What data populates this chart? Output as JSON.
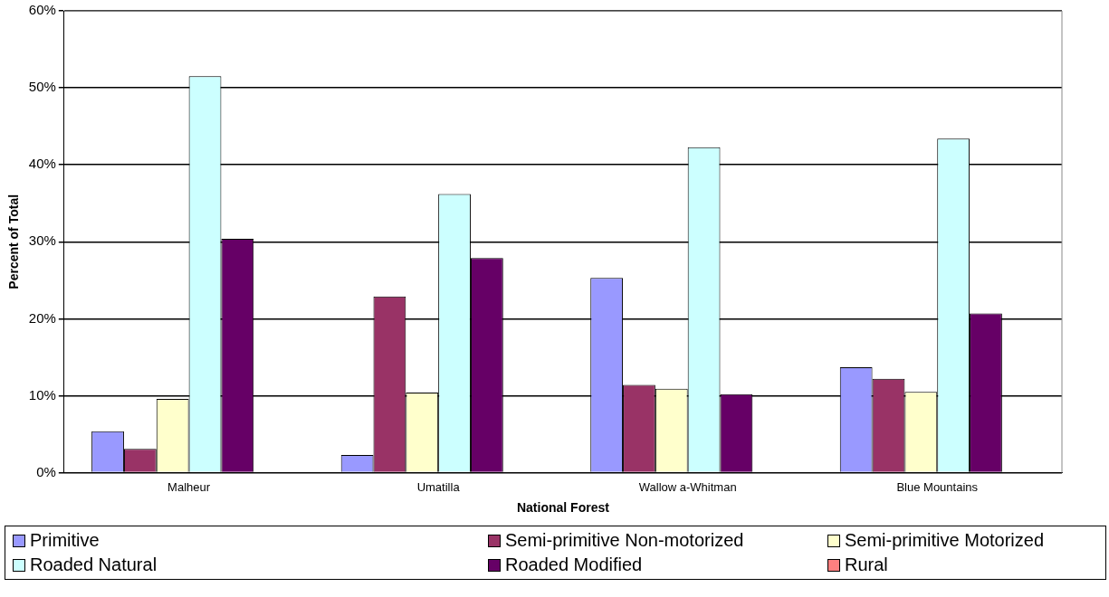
{
  "chart_data": {
    "type": "bar",
    "xlabel": "National Forest",
    "ylabel": "Percent of Total",
    "categories": [
      "Malheur",
      "Umatilla",
      "Wallow a-Whitman",
      "Blue Mountains"
    ],
    "series": [
      {
        "name": "Primitive",
        "color": "#9999ff",
        "values": [
          5.4,
          2.3,
          25.3,
          13.7
        ]
      },
      {
        "name": "Semi-primitive Non-motorized",
        "color": "#993366",
        "values": [
          3.1,
          22.9,
          11.4,
          12.2
        ]
      },
      {
        "name": "Semi-primitive Motorized",
        "color": "#ffffcc",
        "values": [
          9.6,
          10.4,
          10.9,
          10.5
        ]
      },
      {
        "name": "Roaded Natural",
        "color": "#ccffff",
        "values": [
          51.5,
          36.2,
          42.3,
          43.4
        ]
      },
      {
        "name": "Roaded Modified",
        "color": "#660066",
        "values": [
          30.4,
          27.9,
          10.2,
          20.7
        ]
      },
      {
        "name": "Rural",
        "color": "#ff8080",
        "values": [
          0,
          0,
          0,
          0
        ]
      }
    ],
    "ylim": [
      0,
      60
    ],
    "yticks": [
      {
        "value": 0,
        "label": "0%"
      },
      {
        "value": 10,
        "label": "10%"
      },
      {
        "value": 20,
        "label": "20%"
      },
      {
        "value": 30,
        "label": "30%"
      },
      {
        "value": 40,
        "label": "40%"
      },
      {
        "value": 50,
        "label": "50%"
      },
      {
        "value": 60,
        "label": "60%"
      }
    ],
    "grid": "y",
    "legend": "bottom"
  }
}
